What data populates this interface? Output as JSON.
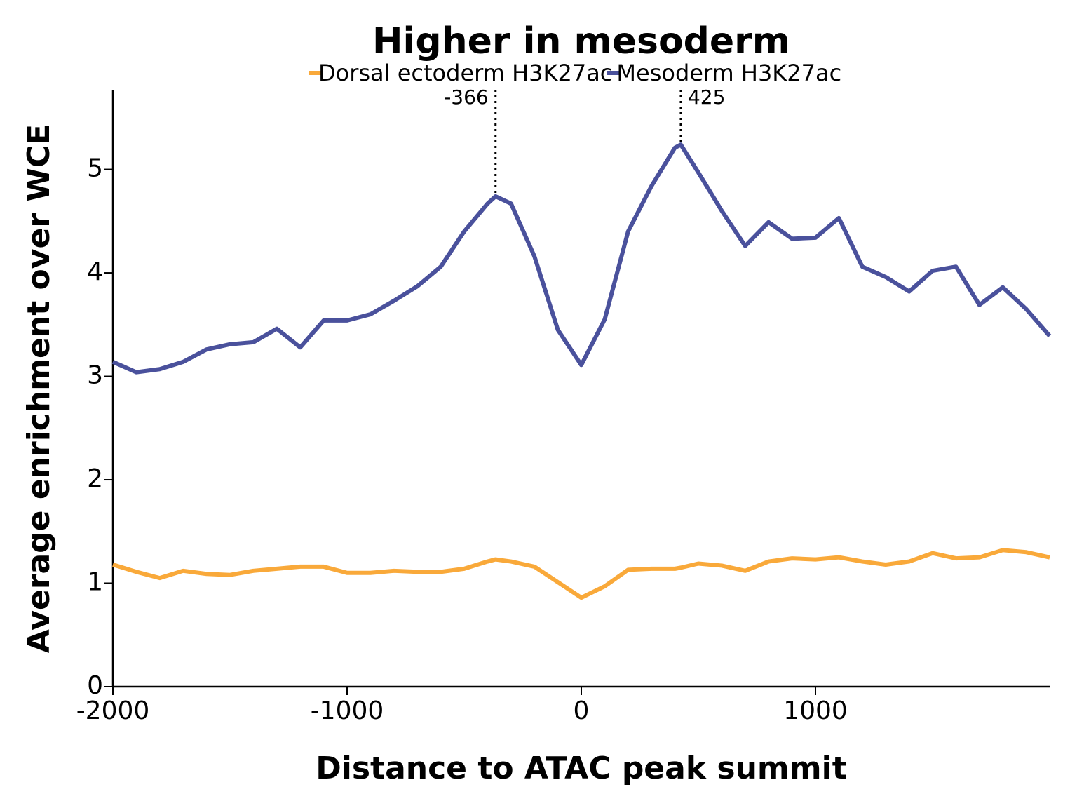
{
  "chart_data": {
    "type": "line",
    "title": "Higher in mesoderm",
    "x_label": "Distance to ATAC peak summit",
    "y_label": "Average enrichment over WCE",
    "x": [
      -2000,
      -1900,
      -1800,
      -1700,
      -1600,
      -1500,
      -1400,
      -1300,
      -1200,
      -1100,
      -1000,
      -900,
      -800,
      -700,
      -600,
      -500,
      -400,
      -366,
      -300,
      -200,
      -100,
      0,
      100,
      200,
      300,
      400,
      425,
      500,
      600,
      700,
      800,
      900,
      1000,
      1100,
      1200,
      1300,
      1400,
      1500,
      1600,
      1700,
      1800,
      1900,
      2000
    ],
    "series": [
      {
        "name": "Dorsal ectoderm H3K27ac",
        "color": "#f9a93a",
        "values": [
          1.18,
          1.11,
          1.05,
          1.12,
          1.09,
          1.08,
          1.12,
          1.14,
          1.16,
          1.16,
          1.1,
          1.1,
          1.12,
          1.11,
          1.11,
          1.14,
          1.21,
          1.23,
          1.21,
          1.16,
          1.01,
          0.86,
          0.97,
          1.13,
          1.14,
          1.14,
          1.15,
          1.19,
          1.17,
          1.12,
          1.21,
          1.24,
          1.23,
          1.25,
          1.21,
          1.18,
          1.21,
          1.29,
          1.24,
          1.25,
          1.32,
          1.3,
          1.25
        ]
      },
      {
        "name": "Mesoderm H3K27ac",
        "color": "#4a519c",
        "values": [
          3.14,
          3.04,
          3.07,
          3.14,
          3.26,
          3.31,
          3.33,
          3.46,
          3.28,
          3.54,
          3.54,
          3.6,
          3.73,
          3.87,
          4.06,
          4.4,
          4.67,
          4.74,
          4.67,
          4.16,
          3.45,
          3.11,
          3.55,
          4.4,
          4.84,
          5.21,
          5.24,
          4.97,
          4.6,
          4.26,
          4.49,
          4.33,
          4.34,
          4.53,
          4.06,
          3.96,
          3.82,
          4.02,
          4.06,
          3.69,
          3.86,
          3.65,
          3.39
        ]
      }
    ],
    "annotations": [
      -366,
      425
    ],
    "xlim": [
      -2000,
      2000
    ],
    "ylim": [
      0,
      5.77
    ],
    "xticks": [
      -2000,
      -1000,
      0,
      1000
    ],
    "yticks": [
      0,
      1,
      2,
      3,
      4,
      5
    ],
    "legend": "top"
  }
}
